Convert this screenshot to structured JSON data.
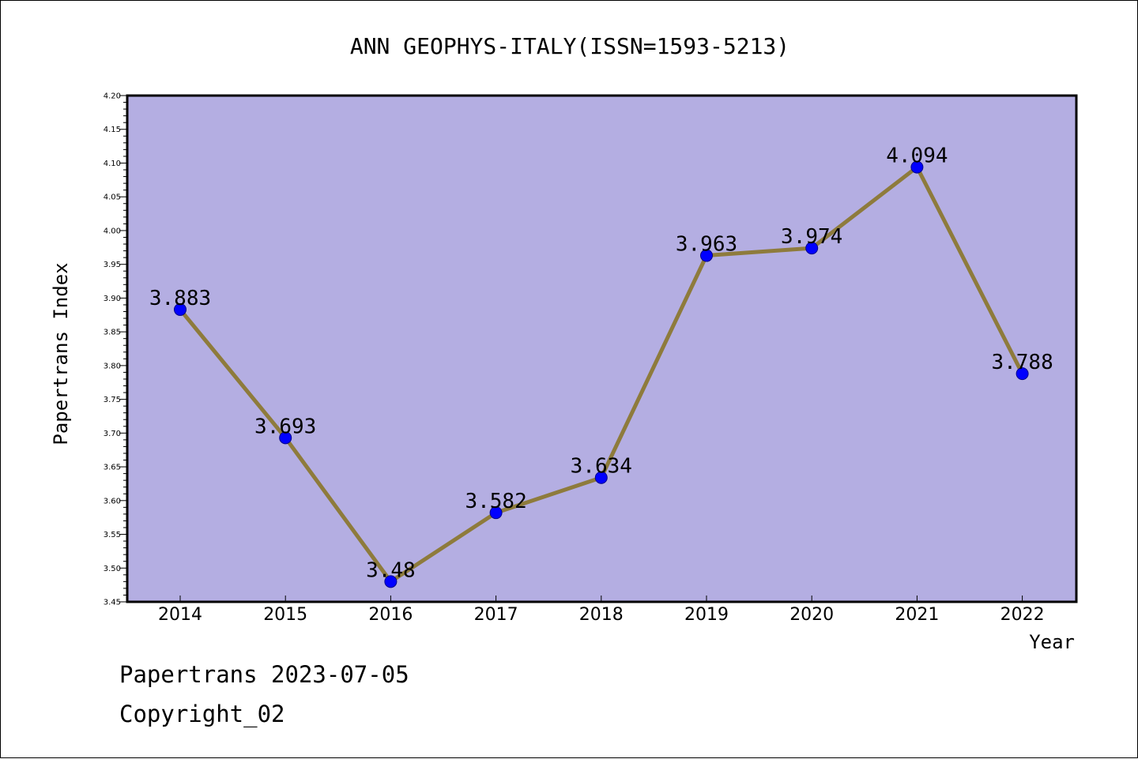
{
  "footer": {
    "line1": "Papertrans 2023-07-05",
    "line2": "Copyright_02"
  },
  "colors": {
    "plot_background": "#b4aee2",
    "line": "#8e7b3c",
    "marker": "#0000ff",
    "marker_edge": "#00008b",
    "frame": "#000000"
  },
  "chart_data": {
    "type": "line",
    "title": "ANN GEOPHYS-ITALY(ISSN=1593-5213)",
    "xlabel": "Year",
    "ylabel": "Papertrans Index",
    "x": [
      "2014",
      "2015",
      "2016",
      "2017",
      "2018",
      "2019",
      "2020",
      "2021",
      "2022"
    ],
    "series": [
      {
        "values": [
          3.883,
          3.693,
          3.48,
          3.582,
          3.634,
          3.963,
          3.974,
          4.094,
          3.788
        ],
        "labels": [
          "3.883",
          "3.693",
          "3.48",
          "3.582",
          "3.634",
          "3.963",
          "3.974",
          "4.094",
          "3.788"
        ]
      }
    ],
    "ylim": [
      3.45,
      4.2
    ],
    "yticks": [
      "3.45",
      "3.50",
      "3.55",
      "3.60",
      "3.65",
      "3.70",
      "3.75",
      "3.80",
      "3.85",
      "3.90",
      "3.95",
      "4.00",
      "4.05",
      "4.10",
      "4.15",
      "4.20"
    ],
    "grid": false,
    "legend": "none"
  }
}
